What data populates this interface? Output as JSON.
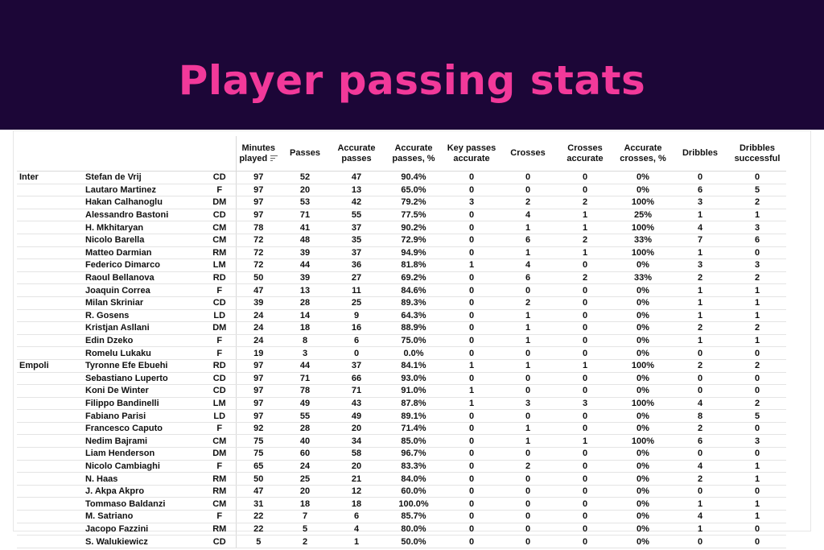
{
  "title": "Player passing stats",
  "chart_data": {
    "type": "table",
    "columns": [
      "",
      "",
      "",
      "Minutes played",
      "Passes",
      "Accurate passes",
      "Accurate passes, %",
      "Key passes accurate",
      "Crosses",
      "Crosses accurate",
      "Accurate crosses, %",
      "Dribbles",
      "Dribbles successful"
    ],
    "sorted_column": "Minutes played",
    "rows": [
      [
        "Inter",
        "Stefan de Vrij",
        "CD",
        "97",
        "52",
        "47",
        "90.4%",
        "0",
        "0",
        "0",
        "0%",
        "0",
        "0"
      ],
      [
        "",
        "Lautaro Martinez",
        "F",
        "97",
        "20",
        "13",
        "65.0%",
        "0",
        "0",
        "0",
        "0%",
        "6",
        "5"
      ],
      [
        "",
        "Hakan Calhanoglu",
        "DM",
        "97",
        "53",
        "42",
        "79.2%",
        "3",
        "2",
        "2",
        "100%",
        "3",
        "2"
      ],
      [
        "",
        "Alessandro Bastoni",
        "CD",
        "97",
        "71",
        "55",
        "77.5%",
        "0",
        "4",
        "1",
        "25%",
        "1",
        "1"
      ],
      [
        "",
        "H. Mkhitaryan",
        "CM",
        "78",
        "41",
        "37",
        "90.2%",
        "0",
        "1",
        "1",
        "100%",
        "4",
        "3"
      ],
      [
        "",
        "Nicolo Barella",
        "CM",
        "72",
        "48",
        "35",
        "72.9%",
        "0",
        "6",
        "2",
        "33%",
        "7",
        "6"
      ],
      [
        "",
        "Matteo Darmian",
        "RM",
        "72",
        "39",
        "37",
        "94.9%",
        "0",
        "1",
        "1",
        "100%",
        "1",
        "0"
      ],
      [
        "",
        "Federico Dimarco",
        "LM",
        "72",
        "44",
        "36",
        "81.8%",
        "1",
        "4",
        "0",
        "0%",
        "3",
        "3"
      ],
      [
        "",
        "Raoul Bellanova",
        "RD",
        "50",
        "39",
        "27",
        "69.2%",
        "0",
        "6",
        "2",
        "33%",
        "2",
        "2"
      ],
      [
        "",
        "Joaquin Correa",
        "F",
        "47",
        "13",
        "11",
        "84.6%",
        "0",
        "0",
        "0",
        "0%",
        "1",
        "1"
      ],
      [
        "",
        "Milan Skriniar",
        "CD",
        "39",
        "28",
        "25",
        "89.3%",
        "0",
        "2",
        "0",
        "0%",
        "1",
        "1"
      ],
      [
        "",
        "R. Gosens",
        "LD",
        "24",
        "14",
        "9",
        "64.3%",
        "0",
        "1",
        "0",
        "0%",
        "1",
        "1"
      ],
      [
        "",
        "Kristjan Asllani",
        "DM",
        "24",
        "18",
        "16",
        "88.9%",
        "0",
        "1",
        "0",
        "0%",
        "2",
        "2"
      ],
      [
        "",
        "Edin Dzeko",
        "F",
        "24",
        "8",
        "6",
        "75.0%",
        "0",
        "1",
        "0",
        "0%",
        "1",
        "1"
      ],
      [
        "",
        "Romelu Lukaku",
        "F",
        "19",
        "3",
        "0",
        "0.0%",
        "0",
        "0",
        "0",
        "0%",
        "0",
        "0"
      ],
      [
        "Empoli",
        "Tyronne Efe Ebuehi",
        "RD",
        "97",
        "44",
        "37",
        "84.1%",
        "1",
        "1",
        "1",
        "100%",
        "2",
        "2"
      ],
      [
        "",
        "Sebastiano Luperto",
        "CD",
        "97",
        "71",
        "66",
        "93.0%",
        "0",
        "0",
        "0",
        "0%",
        "0",
        "0"
      ],
      [
        "",
        "Koni De Winter",
        "CD",
        "97",
        "78",
        "71",
        "91.0%",
        "1",
        "0",
        "0",
        "0%",
        "0",
        "0"
      ],
      [
        "",
        "Filippo Bandinelli",
        "LM",
        "97",
        "49",
        "43",
        "87.8%",
        "1",
        "3",
        "3",
        "100%",
        "4",
        "2"
      ],
      [
        "",
        "Fabiano Parisi",
        "LD",
        "97",
        "55",
        "49",
        "89.1%",
        "0",
        "0",
        "0",
        "0%",
        "8",
        "5"
      ],
      [
        "",
        "Francesco Caputo",
        "F",
        "92",
        "28",
        "20",
        "71.4%",
        "0",
        "1",
        "0",
        "0%",
        "2",
        "0"
      ],
      [
        "",
        "Nedim Bajrami",
        "CM",
        "75",
        "40",
        "34",
        "85.0%",
        "0",
        "1",
        "1",
        "100%",
        "6",
        "3"
      ],
      [
        "",
        "Liam Henderson",
        "DM",
        "75",
        "60",
        "58",
        "96.7%",
        "0",
        "0",
        "0",
        "0%",
        "0",
        "0"
      ],
      [
        "",
        "Nicolo Cambiaghi",
        "F",
        "65",
        "24",
        "20",
        "83.3%",
        "0",
        "2",
        "0",
        "0%",
        "4",
        "1"
      ],
      [
        "",
        "N. Haas",
        "RM",
        "50",
        "25",
        "21",
        "84.0%",
        "0",
        "0",
        "0",
        "0%",
        "2",
        "1"
      ],
      [
        "",
        "J. Akpa Akpro",
        "RM",
        "47",
        "20",
        "12",
        "60.0%",
        "0",
        "0",
        "0",
        "0%",
        "0",
        "0"
      ],
      [
        "",
        "Tommaso Baldanzi",
        "CM",
        "31",
        "18",
        "18",
        "100.0%",
        "0",
        "0",
        "0",
        "0%",
        "1",
        "1"
      ],
      [
        "",
        "M. Satriano",
        "F",
        "22",
        "7",
        "6",
        "85.7%",
        "0",
        "0",
        "0",
        "0%",
        "4",
        "1"
      ],
      [
        "",
        "Jacopo Fazzini",
        "RM",
        "22",
        "5",
        "4",
        "80.0%",
        "0",
        "0",
        "0",
        "0%",
        "1",
        "0"
      ],
      [
        "",
        "S. Walukiewicz",
        "CD",
        "5",
        "2",
        "1",
        "50.0%",
        "0",
        "0",
        "0",
        "0%",
        "0",
        "0"
      ]
    ]
  },
  "colors": {
    "banner": "#1c0637",
    "title": "#f2399a"
  },
  "icons": {
    "sort": "sort-descending-icon"
  }
}
